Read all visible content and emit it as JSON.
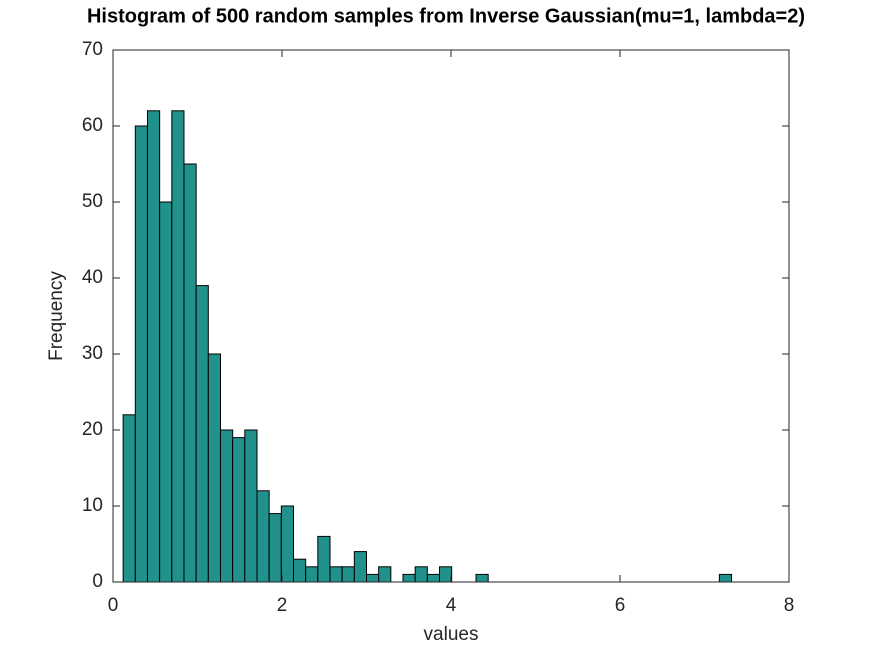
{
  "chart_data": {
    "type": "histogram",
    "title": "Histogram of 500 random samples from Inverse Gaussian(mu=1, lambda=2)",
    "x_label": "values",
    "y_label": "Frequency",
    "bins": [
      0.12,
      0.264,
      0.408,
      0.552,
      0.696,
      0.84,
      0.984,
      1.128,
      1.272,
      1.416,
      1.56,
      1.704,
      1.848,
      1.992,
      2.136,
      2.28,
      2.424,
      2.568,
      2.712,
      2.856,
      3.0,
      3.144,
      3.288,
      3.432,
      3.576,
      3.72,
      3.864,
      4.008,
      4.152,
      4.296,
      4.44,
      4.584,
      4.728,
      4.872,
      5.016,
      5.16,
      5.304,
      5.448,
      5.592,
      5.736,
      5.88,
      6.024,
      6.168,
      6.312,
      6.456,
      6.6,
      6.744,
      6.888,
      7.032,
      7.176,
      7.32
    ],
    "values": [
      22,
      60,
      62,
      50,
      62,
      55,
      39,
      30,
      20,
      19,
      20,
      12,
      9,
      10,
      3,
      2,
      6,
      2,
      2,
      4,
      1,
      2,
      0,
      1,
      2,
      1,
      2,
      0,
      0,
      1,
      0,
      0,
      0,
      0,
      0,
      0,
      0,
      0,
      0,
      0,
      0,
      0,
      0,
      0,
      0,
      0,
      0,
      0,
      0,
      1
    ],
    "color": "#21918c",
    "xlim": [
      0,
      8
    ],
    "xticks": [
      0,
      2,
      4,
      6,
      8
    ],
    "ylim": [
      0,
      70
    ],
    "yticks": [
      0,
      10,
      20,
      30,
      40,
      50,
      60,
      70
    ]
  }
}
